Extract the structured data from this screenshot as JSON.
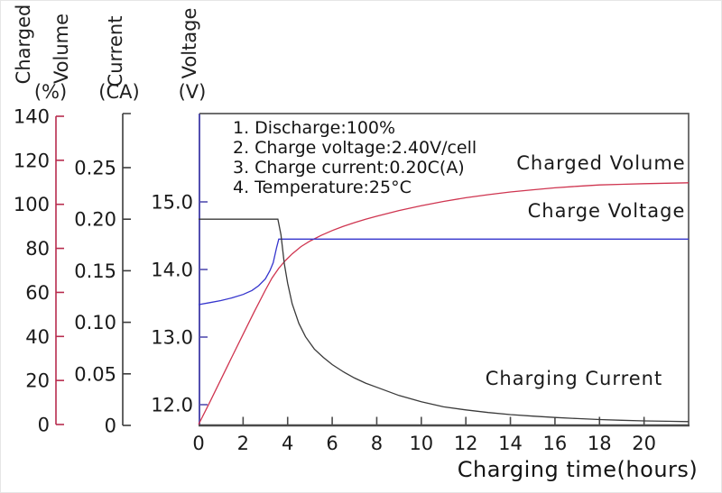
{
  "figure": {
    "volume_title_lines": [
      "Charged",
      "Volume"
    ],
    "volume_unit": "(%)",
    "current_title": "Current",
    "current_unit": "(CA)",
    "voltage_title": "Voltage",
    "voltage_unit": "(V)"
  },
  "chart_data": {
    "type": "line",
    "title": "",
    "xlabel": "Charging time(hours)",
    "x_range": [
      0,
      22
    ],
    "x_tick_labels": [
      "0",
      "2",
      "4",
      "6",
      "8",
      "10",
      "12",
      "14",
      "16",
      "18",
      "20"
    ],
    "grid": false,
    "legend_position": "inline-labels",
    "y_axes": [
      {
        "id": "volume",
        "label": "Charged Volume (%)",
        "range": [
          0,
          140
        ],
        "tick_labels": [
          "0",
          "20",
          "40",
          "60",
          "80",
          "100",
          "120",
          "140"
        ],
        "color": "#b82c4e"
      },
      {
        "id": "current",
        "label": "Current (CA)",
        "range": [
          0,
          0.25
        ],
        "tick_labels": [
          "0",
          "0.05",
          "0.10",
          "0.15",
          "0.20",
          "0.25"
        ],
        "color": "#3c3c3c"
      },
      {
        "id": "voltage",
        "label": "Voltage (V)",
        "range": [
          12,
          15
        ],
        "tick_labels": [
          "12.0",
          "13.0",
          "14.0",
          "15.0"
        ],
        "color": "#534fb0"
      }
    ],
    "annotations": [
      "1. Discharge:100%",
      "2. Charge voltage:2.40V/cell",
      "3. Charge current:0.20C(A)",
      "4. Temperature:25°C"
    ],
    "series": [
      {
        "name": "Charged Volume",
        "axis": "volume",
        "color": "#cf3550",
        "points": [
          [
            0,
            0
          ],
          [
            0.5,
            10
          ],
          [
            1,
            20.4
          ],
          [
            1.5,
            30.7
          ],
          [
            2,
            41
          ],
          [
            2.5,
            51.2
          ],
          [
            3,
            61
          ],
          [
            3.3,
            66.5
          ],
          [
            3.6,
            71
          ],
          [
            3.9,
            74.5
          ],
          [
            4.2,
            77.5
          ],
          [
            4.6,
            80.8
          ],
          [
            5,
            83.3
          ],
          [
            5.5,
            85.9
          ],
          [
            6,
            88.1
          ],
          [
            6.5,
            90
          ],
          [
            7,
            91.7
          ],
          [
            7.5,
            93.2
          ],
          [
            8,
            94.6
          ],
          [
            9,
            97.2
          ],
          [
            10,
            99.4
          ],
          [
            11,
            101.3
          ],
          [
            12,
            103
          ],
          [
            13,
            104.4
          ],
          [
            14,
            105.6
          ],
          [
            15,
            106.6
          ],
          [
            16,
            107.5
          ],
          [
            17,
            108.2
          ],
          [
            18,
            108.8
          ],
          [
            19,
            109.1
          ],
          [
            20,
            109.4
          ],
          [
            21,
            109.6
          ],
          [
            22,
            109.8
          ]
        ]
      },
      {
        "name": "Charge Voltage",
        "axis": "voltage",
        "color": "#3535cd",
        "points": [
          [
            0,
            13.48
          ],
          [
            0.5,
            13.51
          ],
          [
            1,
            13.54
          ],
          [
            1.5,
            13.58
          ],
          [
            2,
            13.63
          ],
          [
            2.4,
            13.69
          ],
          [
            2.7,
            13.76
          ],
          [
            3,
            13.86
          ],
          [
            3.2,
            13.98
          ],
          [
            3.35,
            14.1
          ],
          [
            3.5,
            14.32
          ],
          [
            3.6,
            14.45
          ],
          [
            22,
            14.45
          ]
        ]
      },
      {
        "name": "Charging Current",
        "axis": "current",
        "color": "#3a3a3a",
        "points": [
          [
            0,
            0.2
          ],
          [
            3.56,
            0.2
          ],
          [
            3.7,
            0.185
          ],
          [
            3.85,
            0.157
          ],
          [
            4,
            0.138
          ],
          [
            4.2,
            0.118
          ],
          [
            4.5,
            0.099
          ],
          [
            4.8,
            0.086
          ],
          [
            5.2,
            0.074
          ],
          [
            5.6,
            0.066
          ],
          [
            6,
            0.059
          ],
          [
            6.5,
            0.052
          ],
          [
            7,
            0.046
          ],
          [
            7.5,
            0.041
          ],
          [
            8,
            0.037
          ],
          [
            9,
            0.029
          ],
          [
            10,
            0.023
          ],
          [
            11,
            0.018
          ],
          [
            12,
            0.015
          ],
          [
            13,
            0.0125
          ],
          [
            14,
            0.0105
          ],
          [
            15,
            0.009
          ],
          [
            16,
            0.0077
          ],
          [
            17,
            0.0066
          ],
          [
            18,
            0.0057
          ],
          [
            19,
            0.005
          ],
          [
            20,
            0.0044
          ],
          [
            21,
            0.004
          ],
          [
            22,
            0.0037
          ]
        ]
      }
    ]
  }
}
